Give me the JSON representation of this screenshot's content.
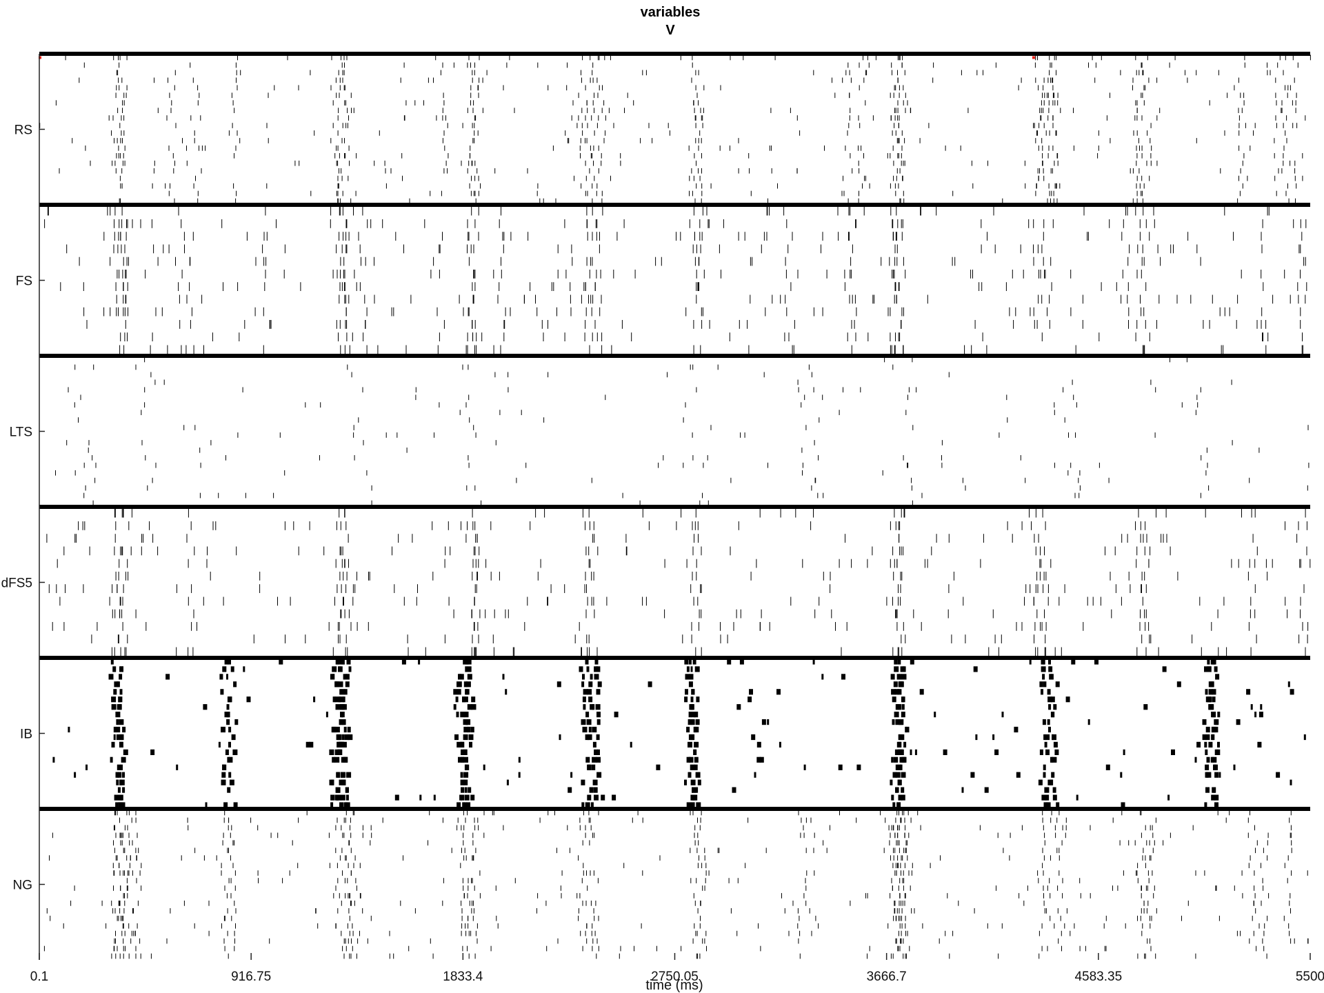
{
  "chart_data": {
    "type": "raster",
    "title": [
      "variables",
      "V"
    ],
    "xlabel": "time (ms)",
    "xlim": [
      0.1,
      5500
    ],
    "xticks": [
      0.1,
      916.75,
      1833.4,
      2750.05,
      3666.7,
      4583.35,
      5500
    ],
    "xtick_labels": [
      "0.1",
      "916.75",
      "1833.4",
      "2750.05",
      "3666.7",
      "4583.35",
      "5500"
    ],
    "grid": false,
    "colors": {
      "spike": "#000000",
      "marker": "#e8241a"
    },
    "populations": [
      {
        "name": "RS",
        "rows": 20,
        "spike_width": "thin",
        "events_ms": [
          320,
          330,
          350,
          360,
          570,
          680,
          850,
          1280,
          1300,
          1310,
          1330,
          1750,
          1870,
          1880,
          1900,
          2350,
          2380,
          2400,
          2430,
          2830,
          2840,
          2860,
          3500,
          3560,
          3700,
          3710,
          3720,
          3730,
          4320,
          4330,
          4360,
          4380,
          4390,
          4400,
          4750,
          4760,
          4790,
          5200,
          5360,
          5390,
          5420
        ],
        "markers": [
          {
            "t_ms": 0.1,
            "row": 1
          },
          {
            "t_ms": 4300,
            "row": 1
          }
        ]
      },
      {
        "name": "FS",
        "rows": 12,
        "spike_width": "thin",
        "events_ms": [
          320,
          340,
          360,
          370,
          380,
          620,
          650,
          980,
          1300,
          1310,
          1320,
          1340,
          1400,
          1740,
          1860,
          1870,
          1880,
          2000,
          2290,
          2360,
          2380,
          2400,
          2420,
          2840,
          2850,
          2860,
          3240,
          3500,
          3520,
          3690,
          3700,
          3710,
          3720,
          3730,
          4320,
          4330,
          4360,
          4700,
          4760,
          4780,
          5300,
          5460,
          5470
        ]
      },
      {
        "name": "LTS",
        "rows": 20,
        "spike_width": "thin",
        "events_ms": [
          180,
          480,
          1380,
          1860,
          2820,
          3330,
          3750,
          4460,
          5040
        ]
      },
      {
        "name": "dFS5",
        "rows": 12,
        "spike_width": "thin",
        "events_ms": [
          320,
          340,
          350,
          360,
          380,
          650,
          1290,
          1310,
          1320,
          1340,
          1870,
          1880,
          1890,
          2360,
          2380,
          2400,
          2840,
          2850,
          3700,
          3710,
          3720,
          3730,
          4300,
          4320,
          4340,
          4360,
          4760,
          4780,
          4800,
          5250,
          5460,
          5480
        ]
      },
      {
        "name": "IB",
        "rows": 20,
        "spike_width": "thick",
        "events_ms": [
          320,
          340,
          360,
          800,
          830,
          1270,
          1280,
          1290,
          1300,
          1310,
          1320,
          1810,
          1830,
          1840,
          1850,
          2360,
          2380,
          2400,
          2810,
          2820,
          2830,
          3700,
          3710,
          3720,
          3730,
          4340,
          4360,
          4380,
          5050,
          5060,
          5070,
          5080
        ]
      },
      {
        "name": "NG",
        "rows": 20,
        "spike_width": "thin",
        "events_ms": [
          320,
          340,
          350,
          360,
          380,
          400,
          420,
          800,
          830,
          1300,
          1320,
          1340,
          1360,
          1380,
          1830,
          1850,
          1870,
          1890,
          2350,
          2380,
          2400,
          2830,
          2850,
          2870,
          3300,
          3350,
          3690,
          3700,
          3710,
          3720,
          3730,
          3740,
          3760,
          4340,
          4380,
          4420,
          4760,
          4780,
          4800,
          4820,
          5250,
          5300,
          5400
        ]
      }
    ]
  }
}
